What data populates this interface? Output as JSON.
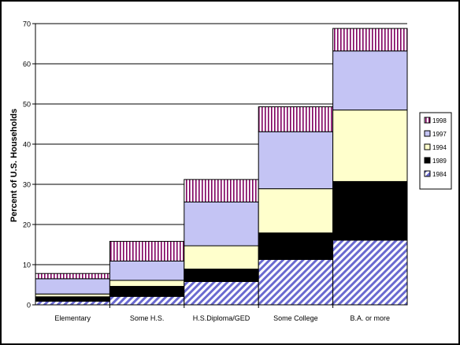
{
  "chart_data": {
    "type": "bar",
    "stacked": true,
    "title": "",
    "xlabel": "",
    "ylabel": "Percent of U.S. Households",
    "ylim": [
      0,
      70
    ],
    "yticks": [
      0,
      10,
      20,
      30,
      40,
      50,
      60,
      70
    ],
    "grid": true,
    "legend_position": "right",
    "categories": [
      "Elementary",
      "Some H.S.",
      "H.S.Diploma/GED",
      "Some College",
      "B.A. or more"
    ],
    "series": [
      {
        "name": "1984",
        "pattern": "diagonal-hatch",
        "color": "#6a6ad0",
        "values": [
          0.9,
          2.1,
          5.8,
          11.3,
          16.1
        ]
      },
      {
        "name": "1989",
        "pattern": "solid",
        "color": "#000000",
        "values": [
          1.1,
          2.5,
          3.1,
          6.6,
          14.6
        ]
      },
      {
        "name": "1994",
        "pattern": "solid",
        "color": "#ffffcc",
        "values": [
          0.7,
          1.5,
          5.8,
          11.0,
          17.8
        ]
      },
      {
        "name": "1997",
        "pattern": "solid",
        "color": "#c4c4f4",
        "values": [
          3.8,
          4.8,
          10.9,
          14.2,
          14.7
        ]
      },
      {
        "name": "1998",
        "pattern": "vertical-stripes",
        "color": "#800060",
        "values": [
          1.3,
          4.9,
          5.6,
          6.2,
          5.6
        ]
      }
    ]
  }
}
